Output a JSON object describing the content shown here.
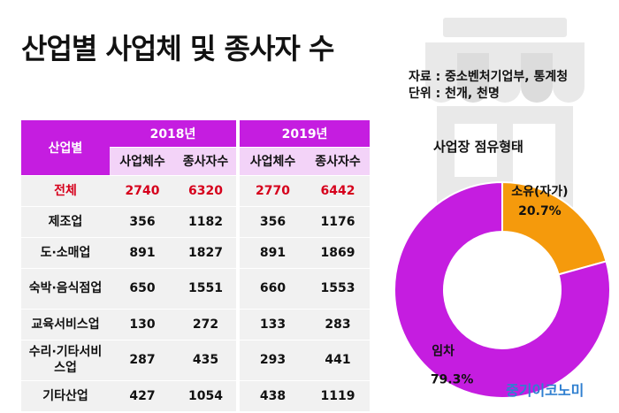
{
  "title": "산업별 사업체 및 종사자 수",
  "source_lines": [
    "자료 : 중소벤처기업부, 통계청",
    "단위 : 천개, 천명"
  ],
  "table": {
    "category_header": "산업별",
    "years": [
      "2018년",
      "2019년"
    ],
    "sub_headers": [
      "사업체수",
      "종사자수",
      "사업체수",
      "종사자수"
    ],
    "rows": [
      {
        "label": "전체",
        "values": [
          "2740",
          "6320",
          "2770",
          "6442"
        ],
        "highlight": true
      },
      {
        "label": "제조업",
        "values": [
          "356",
          "1182",
          "356",
          "1176"
        ]
      },
      {
        "label": "도·소매업",
        "values": [
          "891",
          "1827",
          "891",
          "1869"
        ]
      },
      {
        "label": "숙박·음식점업",
        "values": [
          "650",
          "1551",
          "660",
          "1553"
        ]
      },
      {
        "label": "교육서비스업",
        "values": [
          "130",
          "272",
          "133",
          "283"
        ]
      },
      {
        "label": "수리·기타서비스업",
        "values": [
          "287",
          "435",
          "293",
          "441"
        ]
      },
      {
        "label": "기타산업",
        "values": [
          "427",
          "1054",
          "438",
          "1119"
        ]
      }
    ]
  },
  "chart_data": {
    "type": "pie",
    "title": "사업장 점유형태",
    "slices": [
      {
        "label": "소유(자가)",
        "value": 20.7,
        "value_label": "20.7%",
        "color": "#f59a0c"
      },
      {
        "label": "임차",
        "value": 79.3,
        "value_label": "79.3%",
        "color": "#c51de0"
      }
    ]
  },
  "brand": "중기이코노미",
  "colors": {
    "accent": "#c51de0",
    "header_light": "#f3d3f8",
    "total_red": "#d6001c",
    "owned": "#f59a0c",
    "brand_blue": "#2f7fd0"
  }
}
